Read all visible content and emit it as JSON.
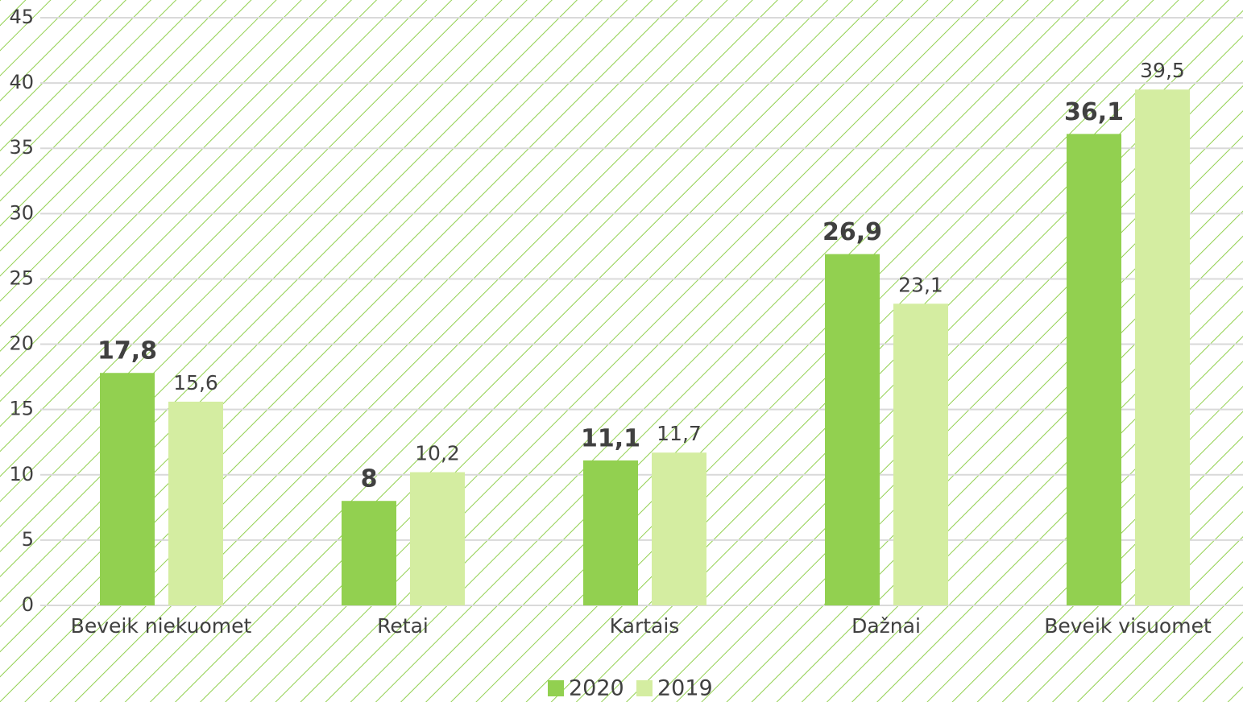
{
  "chart_data": {
    "type": "bar",
    "categories": [
      "Beveik niekuomet",
      "Retai",
      "Kartais",
      "Dažnai",
      "Beveik visuomet"
    ],
    "series": [
      {
        "name": "2020",
        "color": "#92d050",
        "values": [
          17.8,
          8,
          11.1,
          26.9,
          36.1
        ],
        "value_labels": [
          "17,8",
          "8",
          "11,1",
          "26,9",
          "36,1"
        ]
      },
      {
        "name": "2019",
        "color": "#d4eda1",
        "values": [
          15.6,
          10.2,
          11.7,
          23.1,
          39.5
        ],
        "value_labels": [
          "15,6",
          "10,2",
          "11,7",
          "23,1",
          "39,5"
        ]
      }
    ],
    "ylim": [
      0,
      45
    ],
    "yticks": [
      0,
      5,
      10,
      15,
      20,
      25,
      30,
      35,
      40,
      45
    ],
    "grid": true,
    "legend": "bottom"
  }
}
